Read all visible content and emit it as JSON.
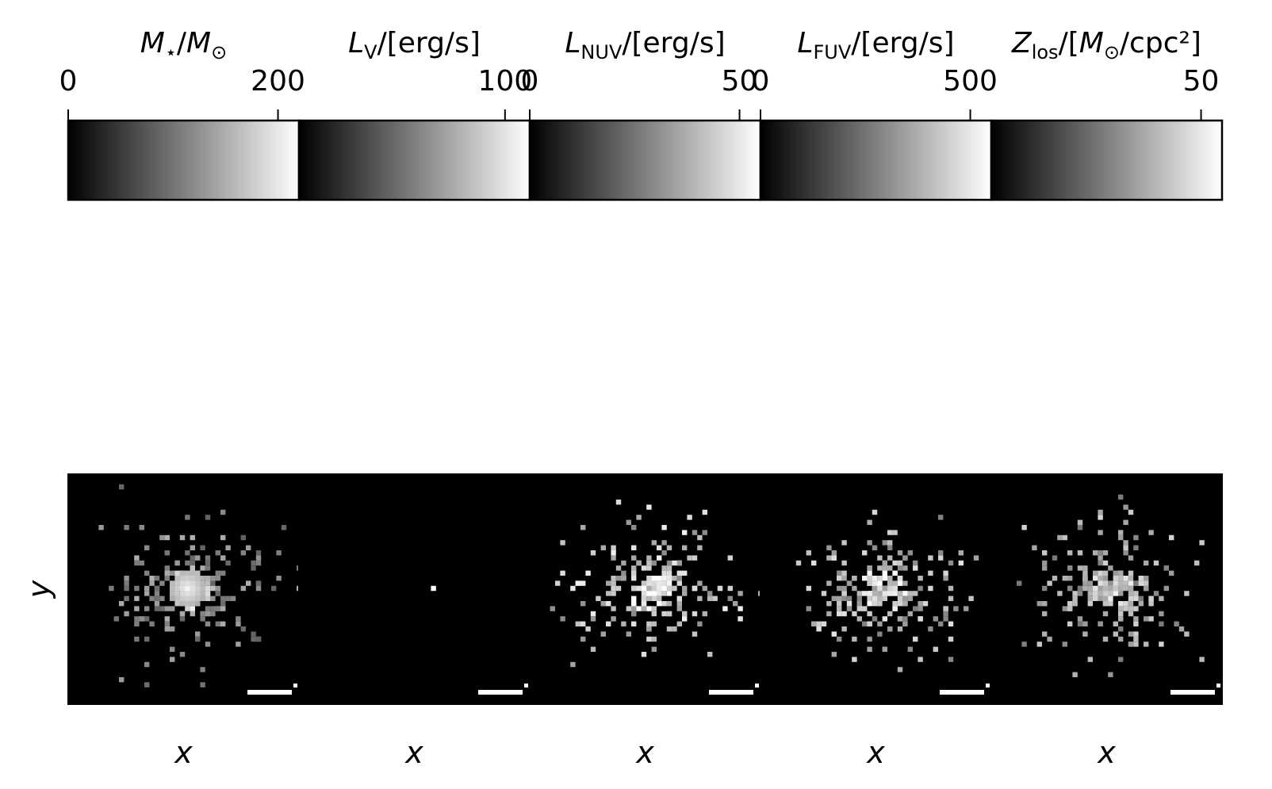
{
  "chart_data": {
    "type": "heatmap",
    "colormap": {
      "name": "gray",
      "low": "#000000",
      "high": "#ffffff"
    },
    "panels": [
      {
        "colorbar": {
          "title": {
            "main": "M",
            "sub": "⋆",
            "rest": "/M",
            "sub2": "⊙",
            "tail": ""
          },
          "range": [
            0,
            220
          ],
          "ticks": [
            0,
            200
          ],
          "tick_labels": [
            "0",
            "200"
          ]
        },
        "xlabel": "x",
        "ylabel": "y",
        "scale_bar": true,
        "core": 1.0,
        "field_level": 0.7
      },
      {
        "colorbar": {
          "title": {
            "main": "L",
            "sub": "V",
            "rest": "/[erg/s]",
            "sub2": "",
            "tail": ""
          },
          "range": [
            0,
            112
          ],
          "ticks": [
            100
          ],
          "tick_labels": [
            "100"
          ]
        },
        "xlabel": "x",
        "ylabel": "",
        "scale_bar": true,
        "core": 0.0,
        "field_level": 0.0
      },
      {
        "colorbar": {
          "title": {
            "main": "L",
            "sub": "NUV",
            "rest": "/[erg/s]",
            "sub2": "",
            "tail": ""
          },
          "range": [
            0,
            55
          ],
          "ticks": [
            0,
            50
          ],
          "tick_labels": [
            "0",
            "50"
          ]
        },
        "xlabel": "x",
        "ylabel": "",
        "scale_bar": true,
        "core": 0.55,
        "field_level": 0.95
      },
      {
        "colorbar": {
          "title": {
            "main": "L",
            "sub": "FUV",
            "rest": "/[erg/s]",
            "sub2": "",
            "tail": ""
          },
          "range": [
            0,
            550
          ],
          "ticks": [
            0,
            500
          ],
          "tick_labels": [
            "0",
            "500"
          ]
        },
        "xlabel": "x",
        "ylabel": "",
        "scale_bar": true,
        "core": 0.45,
        "field_level": 0.9
      },
      {
        "colorbar": {
          "title": {
            "main": "Z",
            "sub": "los",
            "rest": "/[M",
            "sub2": "⊙",
            "tail": "/cpc²]"
          },
          "range": [
            0,
            55
          ],
          "ticks": [
            50
          ],
          "tick_labels": [
            "50"
          ]
        },
        "xlabel": "x",
        "ylabel": "",
        "scale_bar": true,
        "core": 0.4,
        "field_level": 0.85
      }
    ]
  }
}
